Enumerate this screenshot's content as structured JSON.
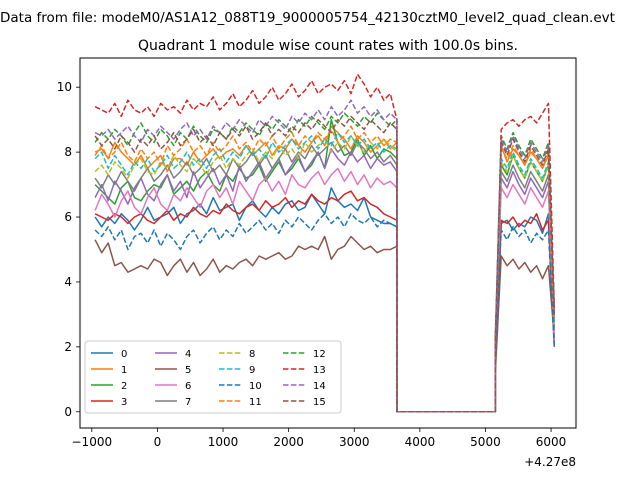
{
  "figure": {
    "suptitle": "Data from file: modeM0/AS1A12_088T19_9000005754_42130cztM0_level2_quad_clean.evt"
  },
  "chart_data": {
    "type": "line",
    "title": "Quadrant 1 module wise count rates with 100.0s bins.",
    "xlabel": "",
    "ylabel": "",
    "x_offset_label": "+4.27e8",
    "xlim": [
      -1180,
      6380
    ],
    "ylim": [
      -0.5,
      10.9
    ],
    "xticks": [
      -1000,
      0,
      1000,
      2000,
      3000,
      4000,
      5000,
      6000
    ],
    "yticks": [
      0,
      2,
      4,
      6,
      8,
      10
    ],
    "grid": false,
    "legend": {
      "placement": "lower-left",
      "columns": 4
    },
    "x_segment1": [
      -950,
      3650
    ],
    "x_segment2": [
      3650,
      5150
    ],
    "x_segment3": [
      5150,
      6050
    ],
    "series": [
      {
        "name": "0",
        "color": "#1f77b4",
        "dash": false,
        "seg1": [
          6.0,
          5.7,
          6.0,
          5.8,
          6.1,
          5.9,
          5.6,
          5.9,
          6.3,
          5.9,
          6.0,
          6.1,
          6.3,
          5.8,
          6.1,
          6.2,
          6.4,
          6.1,
          6.6,
          6.2,
          6.3,
          6.4,
          5.9,
          6.3,
          6.5,
          6.2,
          6.0,
          6.3,
          6.1,
          6.4,
          6.5,
          6.2,
          6.3,
          6.7,
          6.4,
          6.1,
          6.9,
          6.5,
          6.3,
          6.4,
          6.2,
          6.6,
          6.0,
          5.9,
          5.8,
          5.8,
          5.7
        ],
        "seg3": [
          1.5,
          5.8,
          5.9,
          5.6,
          5.8,
          5.7,
          6.0,
          5.9,
          5.5,
          6.1,
          2.1
        ]
      },
      {
        "name": "1",
        "color": "#ff7f0e",
        "dash": false,
        "seg1": [
          8.0,
          8.1,
          7.8,
          8.3,
          8.0,
          7.8,
          7.6,
          7.9,
          7.5,
          7.7,
          7.9,
          7.4,
          7.8,
          7.8,
          7.6,
          8.0,
          7.7,
          7.9,
          8.1,
          7.8,
          8.0,
          8.1,
          7.9,
          8.2,
          7.9,
          8.1,
          8.3,
          7.9,
          8.2,
          8.1,
          8.4,
          8.2,
          8.0,
          8.3,
          8.5,
          8.2,
          8.8,
          8.6,
          8.4,
          8.1,
          8.5,
          8.3,
          8.0,
          8.2,
          8.4,
          8.1,
          8.3
        ],
        "seg3": [
          2.0,
          8.2,
          7.7,
          8.1,
          7.9,
          7.6,
          8.0,
          7.8,
          7.5,
          7.9,
          3.2
        ]
      },
      {
        "name": "2",
        "color": "#2ca02c",
        "dash": false,
        "seg1": [
          7.0,
          6.8,
          6.6,
          6.4,
          6.9,
          7.1,
          6.6,
          6.5,
          6.8,
          7.0,
          6.9,
          7.3,
          6.7,
          6.9,
          7.1,
          6.8,
          7.2,
          7.4,
          7.0,
          6.8,
          7.3,
          7.1,
          7.5,
          7.2,
          7.3,
          7.6,
          7.1,
          7.4,
          7.7,
          7.3,
          7.5,
          7.8,
          7.4,
          7.6,
          8.0,
          7.5,
          9.0,
          8.3,
          7.9,
          8.0,
          8.4,
          7.9,
          8.2,
          7.8,
          8.1,
          8.0,
          7.8
        ],
        "seg3": [
          2.2,
          7.6,
          7.3,
          7.9,
          7.5,
          7.2,
          7.7,
          7.4,
          7.1,
          7.6,
          2.9
        ]
      },
      {
        "name": "3",
        "color": "#d62728",
        "dash": false,
        "seg1": [
          6.1,
          6.0,
          5.9,
          6.1,
          6.0,
          5.8,
          6.0,
          6.1,
          5.9,
          5.8,
          6.0,
          6.2,
          5.9,
          6.1,
          6.0,
          6.3,
          6.1,
          6.0,
          6.2,
          6.1,
          6.4,
          6.2,
          6.1,
          6.3,
          6.4,
          6.2,
          6.5,
          6.3,
          6.4,
          6.6,
          6.3,
          6.5,
          6.4,
          6.7,
          6.5,
          6.4,
          6.6,
          6.5,
          6.7,
          6.8,
          6.5,
          6.6,
          6.4,
          6.3,
          6.1,
          6.0,
          5.9
        ],
        "seg3": [
          1.6,
          5.9,
          5.8,
          6.0,
          5.7,
          5.9,
          5.8,
          6.1,
          5.6,
          5.9,
          2.0
        ]
      },
      {
        "name": "4",
        "color": "#9467bd",
        "dash": false,
        "seg1": [
          6.6,
          7.0,
          6.5,
          7.1,
          6.8,
          6.4,
          6.9,
          7.2,
          6.7,
          6.5,
          7.0,
          7.3,
          6.8,
          7.1,
          6.6,
          7.4,
          6.9,
          7.2,
          7.5,
          7.0,
          7.3,
          6.8,
          7.6,
          7.1,
          7.4,
          7.7,
          7.2,
          7.5,
          7.8,
          7.3,
          7.6,
          7.9,
          7.4,
          7.7,
          8.0,
          7.5,
          8.1,
          7.8,
          7.6,
          8.0,
          7.7,
          7.9,
          7.5,
          7.8,
          7.6,
          7.7,
          7.4
        ],
        "seg3": [
          2.0,
          7.2,
          6.9,
          7.4,
          7.0,
          6.7,
          7.2,
          6.9,
          6.6,
          7.1,
          2.5
        ]
      },
      {
        "name": "5",
        "color": "#8c564b",
        "dash": false,
        "seg1": [
          5.3,
          4.9,
          5.2,
          4.5,
          4.6,
          4.3,
          4.4,
          4.5,
          4.4,
          4.7,
          4.6,
          4.2,
          4.5,
          4.7,
          4.3,
          4.6,
          4.2,
          4.4,
          4.7,
          4.3,
          4.5,
          4.4,
          4.6,
          4.7,
          4.5,
          4.8,
          4.7,
          4.8,
          4.9,
          4.7,
          4.8,
          5.1,
          5.0,
          5.1,
          5.0,
          5.4,
          4.7,
          5.0,
          5.1,
          5.4,
          5.2,
          5.0,
          5.1,
          4.9,
          5.0,
          5.0,
          5.1
        ],
        "seg3": [
          1.2,
          4.8,
          4.5,
          4.7,
          4.4,
          4.6,
          4.3,
          4.5,
          4.1,
          4.5,
          2.3
        ]
      },
      {
        "name": "6",
        "color": "#e377c2",
        "dash": false,
        "seg1": [
          6.2,
          6.7,
          6.4,
          6.0,
          6.5,
          6.8,
          6.3,
          6.1,
          6.6,
          6.9,
          6.4,
          6.2,
          6.7,
          6.5,
          6.9,
          6.6,
          6.3,
          6.8,
          7.0,
          6.6,
          6.9,
          6.4,
          7.1,
          6.8,
          6.5,
          7.0,
          7.2,
          6.8,
          7.1,
          6.7,
          7.3,
          7.0,
          6.9,
          7.2,
          7.4,
          7.0,
          7.3,
          7.5,
          7.1,
          7.4,
          7.0,
          7.3,
          6.9,
          7.2,
          7.0,
          7.1,
          6.9
        ],
        "seg3": [
          1.7,
          6.9,
          6.6,
          7.0,
          6.7,
          6.4,
          6.9,
          6.6,
          6.3,
          6.8,
          2.2
        ]
      },
      {
        "name": "7",
        "color": "#7f7f7f",
        "dash": false,
        "seg1": [
          7.2,
          6.9,
          7.3,
          7.0,
          7.4,
          7.1,
          6.8,
          7.2,
          7.5,
          7.1,
          7.3,
          7.6,
          7.2,
          7.4,
          7.7,
          7.3,
          7.5,
          7.8,
          7.4,
          7.6,
          7.3,
          7.8,
          7.5,
          7.7,
          8.0,
          7.6,
          7.9,
          7.5,
          7.8,
          8.1,
          7.7,
          8.0,
          7.8,
          8.2,
          7.9,
          8.1,
          8.3,
          8.0,
          8.2,
          7.9,
          8.3,
          8.1,
          7.8,
          8.0,
          7.7,
          7.9,
          7.6
        ],
        "seg3": [
          2.0,
          7.4,
          7.1,
          7.6,
          7.2,
          6.9,
          7.4,
          7.1,
          6.8,
          7.3,
          2.6
        ]
      },
      {
        "name": "8",
        "color": "#bcbd22",
        "dash": true,
        "seg1": [
          7.4,
          7.6,
          7.3,
          7.7,
          7.5,
          7.2,
          7.6,
          7.8,
          7.4,
          7.3,
          7.7,
          7.5,
          7.9,
          7.6,
          7.4,
          7.8,
          7.6,
          7.3,
          7.7,
          7.9,
          7.5,
          7.8,
          7.6,
          7.9,
          8.1,
          7.7,
          8.0,
          7.8,
          8.2,
          7.9,
          8.1,
          7.8,
          8.3,
          8.0,
          8.2,
          8.4,
          8.0,
          8.3,
          8.1,
          8.5,
          8.2,
          8.0,
          8.3,
          8.1,
          8.4,
          8.2,
          8.0
        ],
        "seg3": [
          2.1,
          7.7,
          7.4,
          7.9,
          7.5,
          7.2,
          7.7,
          7.4,
          7.1,
          7.6,
          2.7
        ]
      },
      {
        "name": "9",
        "color": "#17becf",
        "dash": true,
        "seg1": [
          7.8,
          8.0,
          7.5,
          7.9,
          7.6,
          7.3,
          7.7,
          7.5,
          7.8,
          7.4,
          7.6,
          7.9,
          7.5,
          7.7,
          8.0,
          7.6,
          7.8,
          7.5,
          7.9,
          8.1,
          7.7,
          8.0,
          7.8,
          8.2,
          7.9,
          8.1,
          7.8,
          8.3,
          8.0,
          8.2,
          8.4,
          8.1,
          8.3,
          8.5,
          8.1,
          8.4,
          8.2,
          8.6,
          8.3,
          8.5,
          8.2,
          8.4,
          8.1,
          8.3,
          8.0,
          8.2,
          8.1
        ],
        "seg3": [
          2.0,
          7.8,
          7.5,
          8.0,
          7.6,
          7.3,
          7.8,
          7.5,
          7.2,
          7.7,
          2.8
        ]
      },
      {
        "name": "10",
        "color": "#1f77b4",
        "dash": true,
        "seg1": [
          5.6,
          5.4,
          5.7,
          5.3,
          5.6,
          5.0,
          5.4,
          5.5,
          5.2,
          5.6,
          5.1,
          5.5,
          5.3,
          5.0,
          5.4,
          5.6,
          5.2,
          5.5,
          5.7,
          5.3,
          5.6,
          5.4,
          5.8,
          5.5,
          5.7,
          5.9,
          5.6,
          5.8,
          5.5,
          5.9,
          5.7,
          6.0,
          5.8,
          5.6,
          5.9,
          6.1,
          5.8,
          6.0,
          5.7,
          6.1,
          5.9,
          5.8,
          6.0,
          5.7,
          5.9,
          5.8,
          5.7
        ],
        "seg3": [
          1.6,
          5.6,
          5.3,
          5.7,
          5.4,
          5.6,
          5.2,
          5.5,
          5.3,
          5.6,
          2.0
        ]
      },
      {
        "name": "11",
        "color": "#ff7f0e",
        "dash": true,
        "seg1": [
          7.9,
          8.2,
          7.8,
          8.0,
          8.3,
          7.9,
          7.7,
          8.1,
          7.8,
          8.0,
          7.6,
          8.2,
          7.9,
          8.1,
          8.4,
          8.0,
          8.2,
          7.9,
          8.3,
          8.0,
          8.2,
          8.5,
          8.1,
          8.3,
          8.0,
          8.4,
          8.2,
          8.5,
          8.1,
          8.4,
          8.6,
          8.2,
          8.5,
          8.3,
          8.6,
          8.4,
          8.7,
          8.3,
          8.5,
          8.8,
          8.4,
          8.6,
          8.3,
          8.5,
          8.2,
          8.4,
          8.3
        ],
        "seg3": [
          2.1,
          8.1,
          7.8,
          8.2,
          7.9,
          7.6,
          8.1,
          7.8,
          7.5,
          8.0,
          2.9
        ]
      },
      {
        "name": "12",
        "color": "#2ca02c",
        "dash": true,
        "seg1": [
          8.3,
          8.6,
          8.4,
          8.7,
          8.5,
          8.2,
          8.6,
          8.9,
          8.5,
          8.3,
          8.7,
          8.5,
          8.2,
          8.6,
          8.4,
          8.8,
          8.5,
          8.3,
          8.7,
          8.6,
          8.4,
          8.8,
          8.6,
          8.9,
          8.7,
          8.5,
          8.9,
          8.7,
          9.0,
          8.8,
          8.6,
          9.0,
          8.8,
          9.1,
          8.9,
          8.7,
          9.1,
          8.9,
          9.2,
          9.0,
          8.8,
          9.1,
          8.9,
          9.2,
          9.0,
          8.8,
          9.0
        ],
        "seg3": [
          2.3,
          8.5,
          8.1,
          8.6,
          8.2,
          7.9,
          8.4,
          8.1,
          7.8,
          8.3,
          3.0
        ]
      },
      {
        "name": "13",
        "color": "#d62728",
        "dash": true,
        "seg1": [
          9.4,
          9.3,
          9.2,
          9.5,
          9.1,
          9.6,
          9.3,
          9.2,
          9.4,
          9.1,
          9.5,
          9.3,
          9.4,
          9.2,
          9.6,
          9.3,
          9.5,
          9.4,
          9.7,
          9.3,
          9.5,
          9.8,
          9.4,
          9.6,
          9.9,
          9.5,
          9.7,
          10.0,
          9.6,
          9.8,
          10.1,
          9.7,
          9.9,
          10.2,
          9.8,
          10.0,
          10.1,
          9.9,
          10.2,
          9.8,
          10.4,
          10.1,
          9.7,
          10.0,
          9.6,
          9.8,
          9.0
        ],
        "seg3": [
          1.9,
          8.7,
          8.9,
          9.0,
          8.8,
          9.0,
          9.1,
          8.9,
          9.2,
          9.5,
          3.2
        ]
      },
      {
        "name": "14",
        "color": "#9467bd",
        "dash": true,
        "seg1": [
          8.6,
          8.5,
          8.7,
          8.4,
          8.6,
          8.8,
          8.5,
          8.3,
          8.7,
          8.5,
          8.8,
          8.6,
          8.4,
          8.7,
          8.9,
          8.5,
          8.7,
          8.4,
          8.8,
          8.6,
          8.9,
          8.7,
          9.0,
          8.8,
          8.6,
          9.0,
          8.8,
          9.1,
          8.9,
          8.7,
          9.1,
          8.9,
          9.2,
          9.0,
          9.3,
          9.0,
          9.4,
          9.1,
          9.3,
          9.6,
          9.2,
          9.4,
          9.1,
          9.3,
          9.0,
          9.2,
          9.0
        ],
        "seg3": [
          2.1,
          8.4,
          8.0,
          8.5,
          8.1,
          7.8,
          8.3,
          8.0,
          7.7,
          8.2,
          3.0
        ]
      },
      {
        "name": "15",
        "color": "#8c564b",
        "dash": true,
        "seg1": [
          8.5,
          8.2,
          8.4,
          8.1,
          8.5,
          8.3,
          8.0,
          8.4,
          8.2,
          8.5,
          8.1,
          8.3,
          8.6,
          8.2,
          8.4,
          8.7,
          8.3,
          8.5,
          8.2,
          8.6,
          8.4,
          8.7,
          8.5,
          8.8,
          8.4,
          8.6,
          8.9,
          8.5,
          8.7,
          8.5,
          8.8,
          8.6,
          8.9,
          8.7,
          9.0,
          8.8,
          8.6,
          9.0,
          8.8,
          9.1,
          8.9,
          8.7,
          9.0,
          8.8,
          8.6,
          8.9,
          8.7
        ],
        "seg3": [
          2.2,
          8.3,
          7.9,
          8.4,
          8.0,
          7.7,
          8.2,
          7.9,
          7.6,
          8.1,
          2.9
        ]
      }
    ]
  }
}
